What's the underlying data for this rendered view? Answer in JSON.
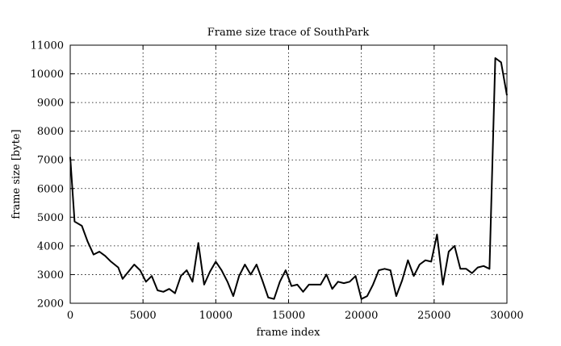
{
  "chart_data": {
    "type": "line",
    "title": "Frame size trace of SouthPark",
    "xlabel": "frame index",
    "ylabel": "frame size [byte]",
    "xlim": [
      0,
      30000
    ],
    "ylim": [
      2000,
      11000
    ],
    "xticks": [
      0,
      5000,
      10000,
      15000,
      20000,
      25000,
      30000
    ],
    "yticks": [
      2000,
      3000,
      4000,
      5000,
      6000,
      7000,
      8000,
      9000,
      10000,
      11000
    ],
    "grid": true,
    "legend": "none",
    "line_color": "#000000",
    "series": [
      {
        "x": [
          0,
          300,
          800,
          1200,
          1600,
          2000,
          2400,
          2800,
          3300,
          3600,
          4000,
          4400,
          4800,
          5200,
          5600,
          6000,
          6400,
          6800,
          7200,
          7600,
          8000,
          8400,
          8800,
          9200,
          9600,
          10000,
          10400,
          10800,
          11200,
          11600,
          12000,
          12400,
          12800,
          13200,
          13600,
          14000,
          14400,
          14800,
          15200,
          15600,
          16000,
          16400,
          16800,
          17200,
          17600,
          18000,
          18400,
          18800,
          19200,
          19600,
          20000,
          20400,
          20800,
          21200,
          21600,
          22000,
          22400,
          22800,
          23200,
          23600,
          24000,
          24400,
          24800,
          25200,
          25600,
          26000,
          26400,
          26800,
          27200,
          27600,
          28000,
          28400,
          28800,
          29200,
          29600,
          30000
        ],
        "y": [
          7100,
          4850,
          4700,
          4150,
          3700,
          3800,
          3650,
          3450,
          3250,
          2850,
          3100,
          3350,
          3150,
          2750,
          2950,
          2450,
          2400,
          2500,
          2350,
          2950,
          3150,
          2750,
          4100,
          2650,
          3100,
          3450,
          3150,
          2750,
          2250,
          2950,
          3350,
          3000,
          3350,
          2800,
          2200,
          2150,
          2750,
          3150,
          2600,
          2650,
          2400,
          2650,
          2650,
          2650,
          3000,
          2500,
          2750,
          2700,
          2750,
          2950,
          2150,
          2250,
          2650,
          3150,
          3200,
          3150,
          2250,
          2800,
          3500,
          2950,
          3350,
          3500,
          3450,
          4400,
          2650,
          3800,
          4000,
          3200,
          3200,
          3050,
          3250,
          3300,
          3200,
          10550,
          10400,
          9250
        ]
      }
    ]
  }
}
